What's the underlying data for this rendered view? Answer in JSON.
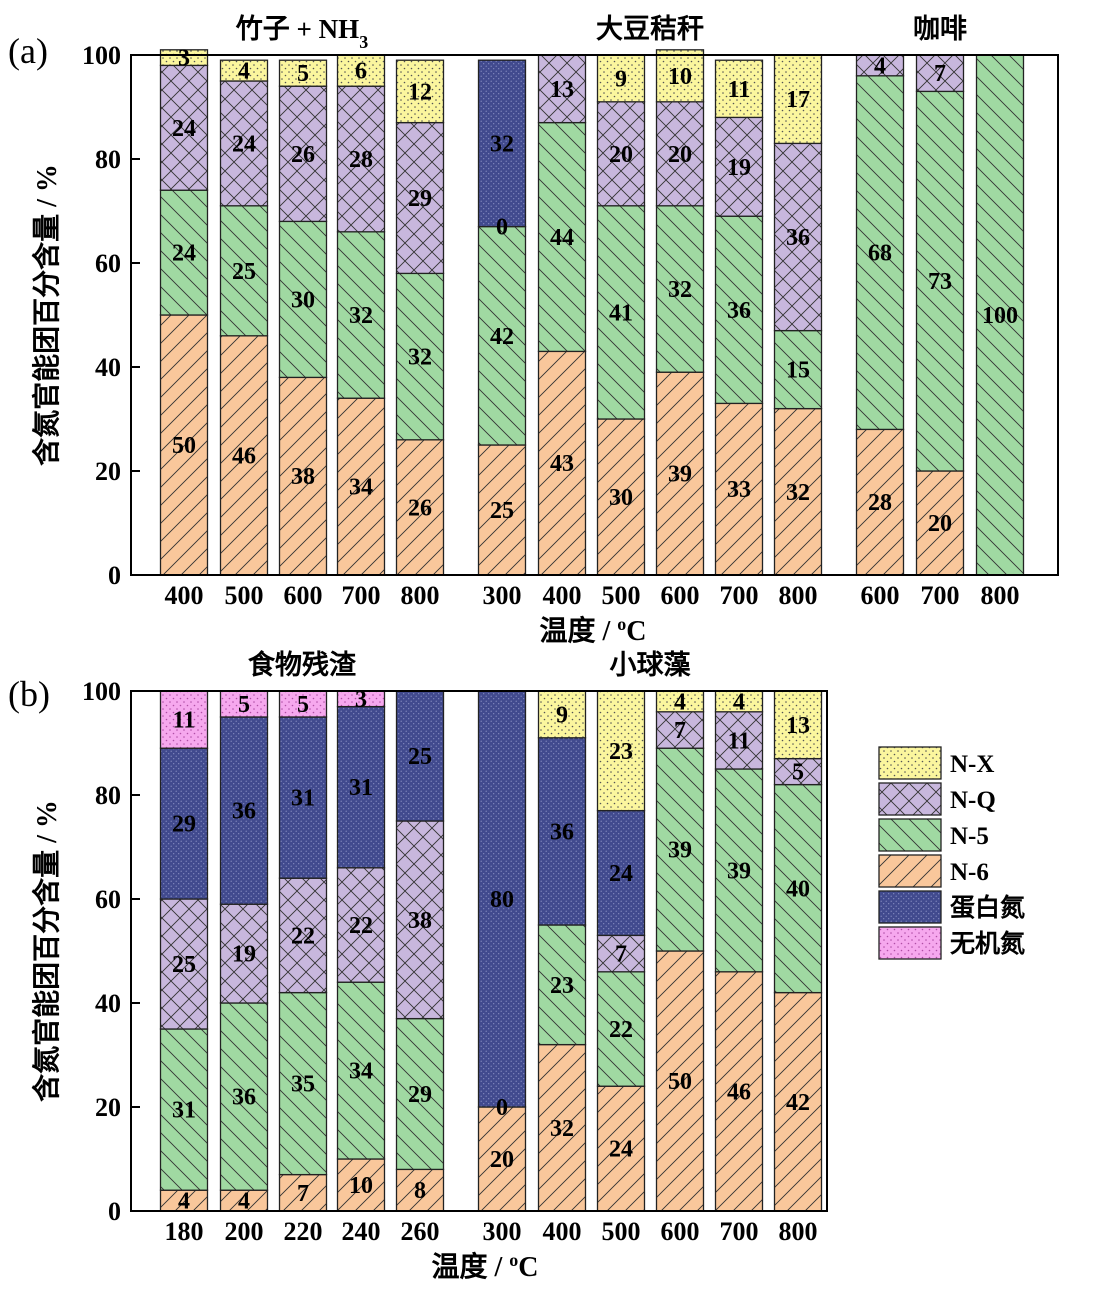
{
  "colors": {
    "N-X": "#fbf69e",
    "N-Q": "#c8b7dd",
    "N-5": "#a0d9a2",
    "N-6": "#f9c79b",
    "蛋白氮": "#414a8e",
    "无机氮": "#f6a8ee"
  },
  "chart_data": [
    {
      "panel": "(a)",
      "type": "bar",
      "stacked": true,
      "ylabel": "含氮官能团百分含量 / %",
      "xlabel": "温度 / ",
      "xlabel_unit": "oC",
      "ylim": [
        0,
        100
      ],
      "yticks": [
        0,
        20,
        40,
        60,
        80,
        100
      ],
      "groups": [
        {
          "name": "竹子 + NH",
          "name_sub": "3",
          "categories": [
            "400",
            "500",
            "600",
            "700",
            "800"
          ],
          "stacks": [
            {
              "N-6": 50,
              "N-5": 24,
              "N-Q": 24,
              "N-X": 3
            },
            {
              "N-6": 46,
              "N-5": 25,
              "N-Q": 24,
              "N-X": 4
            },
            {
              "N-6": 38,
              "N-5": 30,
              "N-Q": 26,
              "N-X": 5
            },
            {
              "N-6": 34,
              "N-5": 32,
              "N-Q": 28,
              "N-X": 6
            },
            {
              "N-6": 26,
              "N-5": 32,
              "N-Q": 29,
              "N-X": 12
            }
          ]
        },
        {
          "name": "大豆秸秆",
          "categories": [
            "300",
            "400",
            "500",
            "600",
            "700",
            "800"
          ],
          "stacks": [
            {
              "N-6": 25,
              "N-5": 42,
              "N-Q": 0,
              "蛋白氮": 32
            },
            {
              "N-6": 43,
              "N-5": 44,
              "N-Q": 13
            },
            {
              "N-6": 30,
              "N-5": 41,
              "N-Q": 20,
              "N-X": 9
            },
            {
              "N-6": 39,
              "N-5": 32,
              "N-Q": 20,
              "N-X": 10
            },
            {
              "N-6": 33,
              "N-5": 36,
              "N-Q": 19,
              "N-X": 11
            },
            {
              "N-6": 32,
              "N-5": 15,
              "N-Q": 36,
              "N-X": 17
            }
          ]
        },
        {
          "name": "咖啡",
          "categories": [
            "600",
            "700",
            "800"
          ],
          "stacks": [
            {
              "N-6": 28,
              "N-5": 68,
              "N-Q": 4
            },
            {
              "N-6": 20,
              "N-5": 73,
              "N-Q": 7
            },
            {
              "N-5": 100
            }
          ]
        }
      ]
    },
    {
      "panel": "(b)",
      "type": "bar",
      "stacked": true,
      "ylabel": "含氮官能团百分含量 / %",
      "xlabel": "温度 / ",
      "xlabel_unit": "oC",
      "ylim": [
        0,
        100
      ],
      "yticks": [
        0,
        20,
        40,
        60,
        80,
        100
      ],
      "legend": [
        "N-X",
        "N-Q",
        "N-5",
        "N-6",
        "蛋白氮",
        "无机氮"
      ],
      "legend_position": "right",
      "groups": [
        {
          "name": "食物残渣",
          "categories": [
            "180",
            "200",
            "220",
            "240",
            "260"
          ],
          "stacks": [
            {
              "N-6": 4,
              "N-5": 31,
              "N-Q": 25,
              "蛋白氮": 29,
              "无机氮": 11
            },
            {
              "N-6": 4,
              "N-5": 36,
              "N-Q": 19,
              "蛋白氮": 36,
              "无机氮": 5
            },
            {
              "N-6": 7,
              "N-5": 35,
              "N-Q": 22,
              "蛋白氮": 31,
              "无机氮": 5
            },
            {
              "N-6": 10,
              "N-5": 34,
              "N-Q": 22,
              "蛋白氮": 31,
              "无机氮": 3
            },
            {
              "N-6": 8,
              "N-5": 29,
              "N-Q": 38,
              "蛋白氮": 25
            }
          ]
        },
        {
          "name": "小球藻",
          "categories": [
            "300",
            "400",
            "500",
            "600",
            "700",
            "800"
          ],
          "stacks": [
            {
              "N-6": 20,
              "N-5": 0,
              "蛋白氮": 80
            },
            {
              "N-6": 32,
              "N-5": 23,
              "N-X": 9,
              "蛋白氮": 36
            },
            {
              "N-6": 24,
              "N-5": 22,
              "N-Q": 7,
              "N-X": 23,
              "蛋白氮": 24
            },
            {
              "N-6": 50,
              "N-5": 39,
              "N-Q": 7,
              "N-X": 4
            },
            {
              "N-6": 46,
              "N-5": 39,
              "N-Q": 11,
              "N-X": 4
            },
            {
              "N-6": 42,
              "N-5": 40,
              "N-Q": 5,
              "N-X": 13
            }
          ]
        }
      ]
    }
  ]
}
